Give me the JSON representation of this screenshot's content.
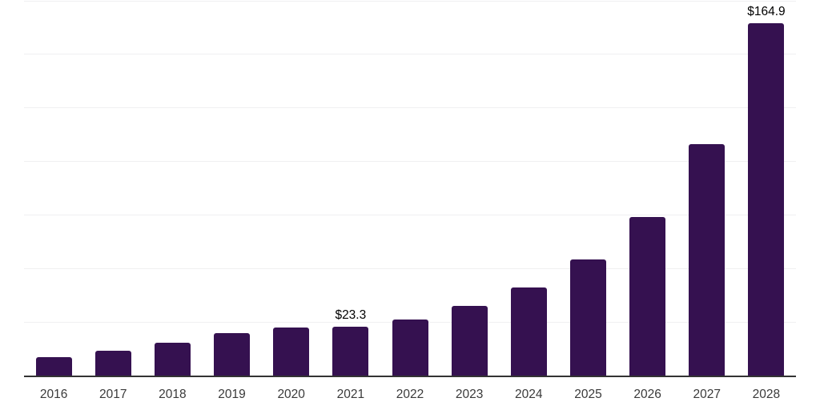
{
  "chart_data": {
    "type": "bar",
    "title": "",
    "xlabel": "",
    "ylabel": "",
    "categories": [
      "2016",
      "2017",
      "2018",
      "2019",
      "2020",
      "2021",
      "2022",
      "2023",
      "2024",
      "2025",
      "2026",
      "2027",
      "2028"
    ],
    "values": [
      8.9,
      11.8,
      15.6,
      20.0,
      22.7,
      23.3,
      26.4,
      32.8,
      41.4,
      54.4,
      74.3,
      108.5,
      164.9
    ],
    "data_labels": {
      "2021": "$23.3",
      "2028": "$164.9"
    },
    "ylim": [
      0,
      175
    ],
    "gridline_step": 25,
    "grid": true,
    "legend": false,
    "y_tick_labels_visible": false,
    "colors": {
      "bar": "#351150",
      "axis_line": "#333333",
      "gridline": "#f0f0f1",
      "x_tick_label": "#3a3a3a",
      "value_label": "#000000",
      "background": "#ffffff"
    }
  }
}
